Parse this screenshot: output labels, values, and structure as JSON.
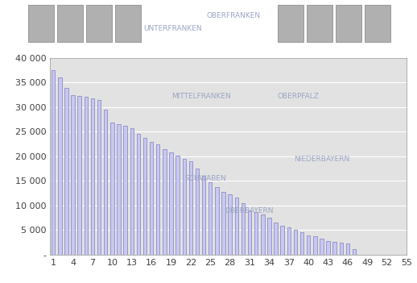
{
  "chart_data": {
    "type": "bar",
    "x": [
      1,
      2,
      3,
      4,
      5,
      6,
      7,
      8,
      9,
      10,
      11,
      12,
      13,
      14,
      15,
      16,
      17,
      18,
      19,
      20,
      21,
      22,
      23,
      24,
      25,
      26,
      27,
      28,
      29,
      30,
      31,
      32,
      33,
      34,
      35,
      36,
      37,
      38,
      39,
      40,
      41,
      42,
      43,
      44,
      45,
      46,
      47
    ],
    "values": [
      37500,
      36000,
      34000,
      32500,
      32300,
      32200,
      31800,
      31400,
      29500,
      26800,
      26600,
      26300,
      25700,
      24500,
      23800,
      23000,
      22500,
      21500,
      20800,
      20200,
      19500,
      19000,
      17500,
      16000,
      14800,
      13800,
      12800,
      12300,
      11700,
      10400,
      9000,
      8700,
      8200,
      7500,
      6600,
      5900,
      5500,
      5000,
      4600,
      4000,
      3700,
      3300,
      2800,
      2600,
      2500,
      2200,
      1200
    ],
    "color": "#c8c8f0",
    "xlim": [
      0.5,
      55
    ],
    "xticks": [
      1,
      4,
      7,
      10,
      13,
      16,
      19,
      22,
      25,
      28,
      31,
      34,
      37,
      40,
      43,
      46,
      49,
      52,
      55
    ],
    "ylim": [
      0,
      40000
    ],
    "yticks": [
      {
        "value": 0,
        "label": "-"
      },
      {
        "value": 5000,
        "label": "5 000"
      },
      {
        "value": 10000,
        "label": "10 000"
      },
      {
        "value": 15000,
        "label": "15 000"
      },
      {
        "value": 20000,
        "label": "20 000"
      },
      {
        "value": 25000,
        "label": "25 000"
      },
      {
        "value": 30000,
        "label": "30 000"
      },
      {
        "value": 35000,
        "label": "35 000"
      },
      {
        "value": 40000,
        "label": "40 000"
      }
    ],
    "grid": true,
    "annotations": [
      "UNTERFRANKEN",
      "OBERFRANKEN",
      "MITTELFRANKEN",
      "OBERPFALZ",
      "NIEDERBAYERN",
      "SCHWABEN",
      "OBERBAYERN"
    ]
  }
}
